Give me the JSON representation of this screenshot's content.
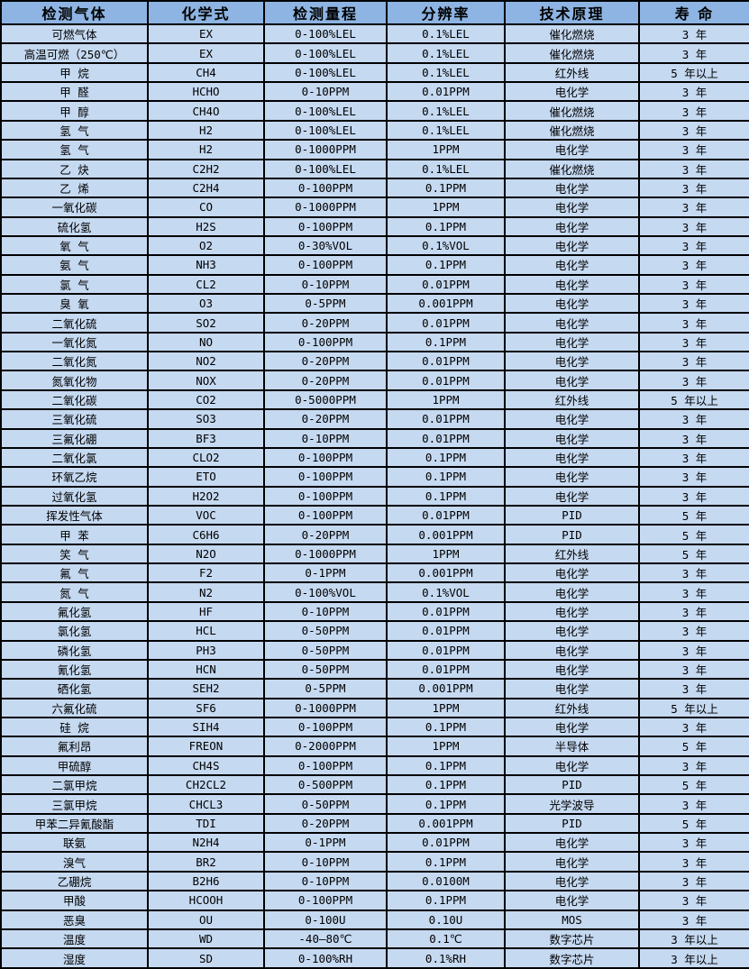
{
  "table": {
    "columns": [
      {
        "key": "gas",
        "label": "检测气体"
      },
      {
        "key": "formula",
        "label": "化学式"
      },
      {
        "key": "range",
        "label": "检测量程"
      },
      {
        "key": "resolution",
        "label": "分辨率"
      },
      {
        "key": "principle",
        "label": "技术原理"
      },
      {
        "key": "life",
        "label": "寿 命"
      }
    ],
    "colors": {
      "header_bg": "#8DB4E2",
      "row_bg": "#C5D9F1",
      "border": "#000000",
      "text": "#000000"
    },
    "rows": [
      [
        "可燃气体",
        "EX",
        "0-100%LEL",
        "0.1%LEL",
        "催化燃烧",
        "3 年"
      ],
      [
        "高温可燃（250℃）",
        "EX",
        "0-100%LEL",
        "0.1%LEL",
        "催化燃烧",
        "3 年"
      ],
      [
        "甲 烷",
        "CH4",
        "0-100%LEL",
        "0.1%LEL",
        "红外线",
        "5 年以上"
      ],
      [
        "甲 醛",
        "HCHO",
        "0-10PPM",
        "0.01PPM",
        "电化学",
        "3 年"
      ],
      [
        "甲 醇",
        "CH4O",
        "0-100%LEL",
        "0.1%LEL",
        "催化燃烧",
        "3 年"
      ],
      [
        "氢 气",
        "H2",
        "0-100%LEL",
        "0.1%LEL",
        "催化燃烧",
        "3 年"
      ],
      [
        "氢 气",
        "H2",
        "0-1000PPM",
        "1PPM",
        "电化学",
        "3 年"
      ],
      [
        "乙 炔",
        "C2H2",
        "0-100%LEL",
        "0.1%LEL",
        "催化燃烧",
        "3 年"
      ],
      [
        "乙 烯",
        "C2H4",
        "0-100PPM",
        "0.1PPM",
        "电化学",
        "3 年"
      ],
      [
        "一氧化碳",
        "CO",
        "0-1000PPM",
        "1PPM",
        "电化学",
        "3 年"
      ],
      [
        "硫化氢",
        "H2S",
        "0-100PPM",
        "0.1PPM",
        "电化学",
        "3 年"
      ],
      [
        "氧 气",
        "O2",
        "0-30%VOL",
        "0.1%VOL",
        "电化学",
        "3 年"
      ],
      [
        "氨 气",
        "NH3",
        "0-100PPM",
        "0.1PPM",
        "电化学",
        "3 年"
      ],
      [
        "氯 气",
        "CL2",
        "0-10PPM",
        "0.01PPM",
        "电化学",
        "3 年"
      ],
      [
        "臭 氧",
        "O3",
        "0-5PPM",
        "0.001PPM",
        "电化学",
        "3 年"
      ],
      [
        "二氧化硫",
        "SO2",
        "0-20PPM",
        "0.01PPM",
        "电化学",
        "3 年"
      ],
      [
        "一氧化氮",
        "NO",
        "0-100PPM",
        "0.1PPM",
        "电化学",
        "3 年"
      ],
      [
        "二氧化氮",
        "NO2",
        "0-20PPM",
        "0.01PPM",
        "电化学",
        "3 年"
      ],
      [
        "氮氧化物",
        "NOX",
        "0-20PPM",
        "0.01PPM",
        "电化学",
        "3 年"
      ],
      [
        "二氧化碳",
        "CO2",
        "0-5000PPM",
        "1PPM",
        "红外线",
        "5 年以上"
      ],
      [
        "三氧化硫",
        "SO3",
        "0-20PPM",
        "0.01PPM",
        "电化学",
        "3 年"
      ],
      [
        "三氟化硼",
        "BF3",
        "0-10PPM",
        "0.01PPM",
        "电化学",
        "3 年"
      ],
      [
        "二氧化氯",
        "CLO2",
        "0-100PPM",
        "0.1PPM",
        "电化学",
        "3 年"
      ],
      [
        "环氧乙烷",
        "ETO",
        "0-100PPM",
        "0.1PPM",
        "电化学",
        "3 年"
      ],
      [
        "过氧化氢",
        "H2O2",
        "0-100PPM",
        "0.1PPM",
        "电化学",
        "3 年"
      ],
      [
        "挥发性气体",
        "VOC",
        "0-100PPM",
        "0.01PPM",
        "PID",
        "5 年"
      ],
      [
        "甲 苯",
        "C6H6",
        "0-20PPM",
        "0.001PPM",
        "PID",
        "5 年"
      ],
      [
        "笑 气",
        "N2O",
        "0-1000PPM",
        "1PPM",
        "红外线",
        "5 年"
      ],
      [
        "氟 气",
        "F2",
        "0-1PPM",
        "0.001PPM",
        "电化学",
        "3 年"
      ],
      [
        "氮 气",
        "N2",
        "0-100%VOL",
        "0.1%VOL",
        "电化学",
        "3 年"
      ],
      [
        "氟化氢",
        "HF",
        "0-10PPM",
        "0.01PPM",
        "电化学",
        "3 年"
      ],
      [
        "氯化氢",
        "HCL",
        "0-50PPM",
        "0.01PPM",
        "电化学",
        "3 年"
      ],
      [
        "磷化氢",
        "PH3",
        "0-50PPM",
        "0.01PPM",
        "电化学",
        "3 年"
      ],
      [
        "氰化氢",
        "HCN",
        "0-50PPM",
        "0.01PPM",
        "电化学",
        "3 年"
      ],
      [
        "硒化氢",
        "SEH2",
        "0-5PPM",
        "0.001PPM",
        "电化学",
        "3 年"
      ],
      [
        "六氟化硫",
        "SF6",
        "0-1000PPM",
        "1PPM",
        "红外线",
        "5 年以上"
      ],
      [
        "硅 烷",
        "SIH4",
        "0-100PPM",
        "0.1PPM",
        "电化学",
        "3 年"
      ],
      [
        "氟利昂",
        "FREON",
        "0-2000PPM",
        "1PPM",
        "半导体",
        "5 年"
      ],
      [
        "甲硫醇",
        "CH4S",
        "0-100PPM",
        "0.1PPM",
        "电化学",
        "3 年"
      ],
      [
        "二氯甲烷",
        "CH2CL2",
        "0-500PPM",
        "0.1PPM",
        "PID",
        "5 年"
      ],
      [
        "三氯甲烷",
        "CHCL3",
        "0-50PPM",
        "0.1PPM",
        "光学波导",
        "3 年"
      ],
      [
        "甲苯二异氰酸酯",
        "TDI",
        "0-20PPM",
        "0.001PPM",
        "PID",
        "5 年"
      ],
      [
        "联氨",
        "N2H4",
        "0-1PPM",
        "0.01PPM",
        "电化学",
        "3 年"
      ],
      [
        "溴气",
        "BR2",
        "0-10PPM",
        "0.1PPM",
        "电化学",
        "3 年"
      ],
      [
        "乙硼烷",
        "B2H6",
        "0-10PPM",
        "0.0100M",
        "电化学",
        "3 年"
      ],
      [
        "甲酸",
        "HCOOH",
        "0-100PPM",
        "0.1PPM",
        "电化学",
        "3 年"
      ],
      [
        "恶臭",
        "OU",
        "0-100U",
        "0.10U",
        "MOS",
        "3 年"
      ],
      [
        "温度",
        "WD",
        "-40—80℃",
        "0.1℃",
        "数字芯片",
        "3 年以上"
      ],
      [
        "湿度",
        "SD",
        "0-100%RH",
        "0.1%RH",
        "数字芯片",
        "3 年以上"
      ]
    ]
  }
}
